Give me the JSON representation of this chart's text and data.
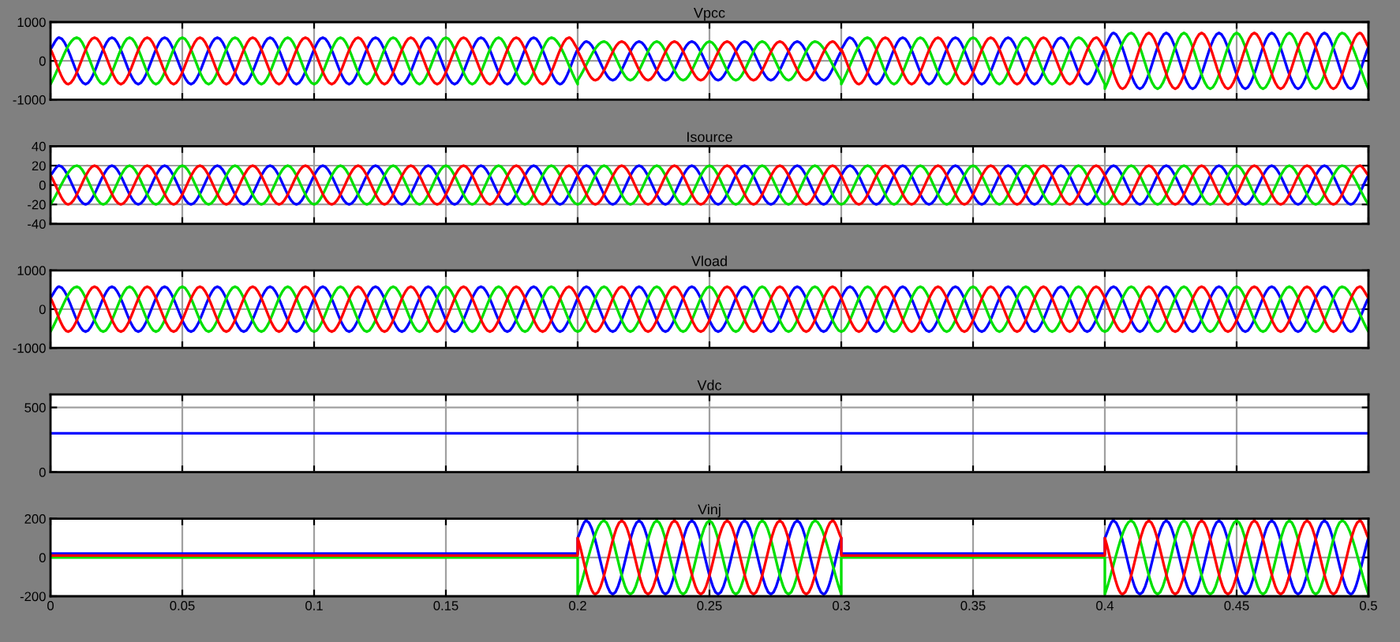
{
  "chart_data": [
    {
      "type": "line",
      "title": "Vpcc",
      "xlim": [
        0,
        0.5
      ],
      "xticks": [
        0,
        0.05,
        0.1,
        0.15,
        0.2,
        0.25,
        0.3,
        0.35,
        0.4,
        0.45,
        0.5
      ],
      "ylim": [
        -1000,
        1000
      ],
      "yticks": [
        -1000,
        0,
        1000
      ],
      "grid": true,
      "tick_labels": "y",
      "series": [
        {
          "color": "#0000ff",
          "x": [
            0,
            0.0033,
            0.0133,
            0.0233,
            0.0333,
            0.0433,
            0.0533,
            0.0633,
            0.0733,
            0.0833,
            0.0933,
            0.1033,
            0.1133,
            0.1233,
            0.1333,
            0.1433,
            0.1533,
            0.1633,
            0.1733,
            0.1833,
            0.1933,
            0.2,
            0.2,
            0.2033,
            0.2133,
            0.2233,
            0.2333,
            0.2433,
            0.2533,
            0.2633,
            0.2733,
            0.2833,
            0.2933,
            0.3,
            0.3,
            0.3033,
            0.3133,
            0.3233,
            0.3333,
            0.3433,
            0.3533,
            0.3633,
            0.3733,
            0.3833,
            0.3933,
            0.4,
            0.4,
            0.4033,
            0.4133,
            0.4233,
            0.4333,
            0.4433,
            0.4533,
            0.4633,
            0.4733,
            0.4833,
            0.4933,
            0.5
          ],
          "values": [
            300,
            600,
            -600,
            600,
            -600,
            600,
            -600,
            600,
            -600,
            600,
            -600,
            600,
            -600,
            600,
            -600,
            600,
            -600,
            600,
            -600,
            600,
            -600,
            300,
            250,
            500,
            -500,
            500,
            -500,
            500,
            -500,
            500,
            -500,
            500,
            -500,
            250,
            300,
            600,
            -600,
            600,
            -600,
            600,
            -600,
            600,
            -600,
            600,
            -600,
            300,
            360,
            720,
            -720,
            720,
            -720,
            720,
            -720,
            720,
            -720,
            720,
            -720,
            360
          ]
        },
        {
          "color": "#00e000",
          "x": [
            0,
            0.01,
            0.02,
            0.03,
            0.04,
            0.05,
            0.06,
            0.07,
            0.08,
            0.09,
            0.1,
            0.11,
            0.12,
            0.13,
            0.14,
            0.15,
            0.16,
            0.17,
            0.18,
            0.19,
            0.2,
            0.2,
            0.21,
            0.22,
            0.23,
            0.24,
            0.25,
            0.26,
            0.27,
            0.28,
            0.29,
            0.3,
            0.3,
            0.31,
            0.32,
            0.33,
            0.34,
            0.35,
            0.36,
            0.37,
            0.38,
            0.39,
            0.4,
            0.4,
            0.41,
            0.42,
            0.43,
            0.44,
            0.45,
            0.46,
            0.47,
            0.48,
            0.49,
            0.5
          ],
          "values": [
            -600,
            600,
            -600,
            600,
            -600,
            600,
            -600,
            600,
            -600,
            600,
            -600,
            600,
            -600,
            600,
            -600,
            600,
            -600,
            600,
            -600,
            600,
            -600,
            -500,
            500,
            -500,
            500,
            -500,
            500,
            -500,
            500,
            -500,
            500,
            -500,
            -600,
            600,
            -600,
            600,
            -600,
            600,
            -600,
            600,
            -600,
            600,
            -600,
            -720,
            720,
            -720,
            720,
            -720,
            720,
            -720,
            720,
            -720,
            720,
            -720
          ]
        },
        {
          "color": "#ff0000",
          "x": [
            0,
            0.0067,
            0.0167,
            0.0267,
            0.0367,
            0.0467,
            0.0567,
            0.0667,
            0.0767,
            0.0867,
            0.0967,
            0.1067,
            0.1167,
            0.1267,
            0.1367,
            0.1467,
            0.1567,
            0.1667,
            0.1767,
            0.1867,
            0.1967,
            0.2,
            0.2,
            0.2067,
            0.2167,
            0.2267,
            0.2367,
            0.2467,
            0.2567,
            0.2667,
            0.2767,
            0.2867,
            0.2967,
            0.3,
            0.3,
            0.3067,
            0.3167,
            0.3267,
            0.3367,
            0.3467,
            0.3567,
            0.3667,
            0.3767,
            0.3867,
            0.3967,
            0.4,
            0.4,
            0.4067,
            0.4167,
            0.4267,
            0.4367,
            0.4467,
            0.4567,
            0.4667,
            0.4767,
            0.4867,
            0.4967,
            0.5
          ],
          "values": [
            300,
            -600,
            600,
            -600,
            600,
            -600,
            600,
            -600,
            600,
            -600,
            600,
            -600,
            600,
            -600,
            600,
            -600,
            600,
            -600,
            600,
            -600,
            600,
            300,
            250,
            -500,
            500,
            -500,
            500,
            -500,
            500,
            -500,
            500,
            -500,
            500,
            250,
            300,
            -600,
            600,
            -600,
            600,
            -600,
            600,
            -600,
            600,
            -600,
            600,
            300,
            360,
            -720,
            720,
            -720,
            720,
            -720,
            720,
            -720,
            720,
            -720,
            720,
            360
          ]
        }
      ]
    },
    {
      "type": "line",
      "title": "Isource",
      "xlim": [
        0,
        0.5
      ],
      "xticks": [
        0,
        0.05,
        0.1,
        0.15,
        0.2,
        0.25,
        0.3,
        0.35,
        0.4,
        0.45,
        0.5
      ],
      "ylim": [
        -40,
        40
      ],
      "yticks": [
        -40,
        -20,
        0,
        20,
        40
      ],
      "grid": true,
      "tick_labels": "y",
      "series": [
        {
          "color": "#0000ff",
          "x": [
            0,
            0.0033,
            0.0133,
            0.0233,
            0.0333,
            0.0433,
            0.0533,
            0.0633,
            0.0733,
            0.0833,
            0.0933,
            0.1033,
            0.1133,
            0.1233,
            0.1333,
            0.1433,
            0.1533,
            0.1633,
            0.1733,
            0.1833,
            0.1933,
            0.2033,
            0.2133,
            0.2233,
            0.2333,
            0.2433,
            0.2533,
            0.2633,
            0.2733,
            0.2833,
            0.2933,
            0.3033,
            0.3133,
            0.3233,
            0.3333,
            0.3433,
            0.3533,
            0.3633,
            0.3733,
            0.3833,
            0.3933,
            0.4033,
            0.4133,
            0.4233,
            0.4333,
            0.4433,
            0.4533,
            0.4633,
            0.4733,
            0.4833,
            0.4933,
            0.5
          ],
          "values": [
            10,
            20,
            -20,
            20,
            -20,
            20,
            -20,
            20,
            -20,
            20,
            -20,
            20,
            -20,
            20,
            -20,
            20,
            -20,
            20,
            -20,
            20,
            -20,
            20,
            -20,
            20,
            -20,
            20,
            -20,
            20,
            -20,
            20,
            -20,
            20,
            -20,
            20,
            -20,
            20,
            -20,
            20,
            -20,
            20,
            -20,
            20,
            -20,
            20,
            -20,
            20,
            -20,
            20,
            -20,
            20,
            -20,
            10
          ]
        },
        {
          "color": "#00e000",
          "x": [
            0,
            0.01,
            0.02,
            0.03,
            0.04,
            0.05,
            0.06,
            0.07,
            0.08,
            0.09,
            0.1,
            0.11,
            0.12,
            0.13,
            0.14,
            0.15,
            0.16,
            0.17,
            0.18,
            0.19,
            0.2,
            0.21,
            0.22,
            0.23,
            0.24,
            0.25,
            0.26,
            0.27,
            0.28,
            0.29,
            0.3,
            0.31,
            0.32,
            0.33,
            0.34,
            0.35,
            0.36,
            0.37,
            0.38,
            0.39,
            0.4,
            0.41,
            0.42,
            0.43,
            0.44,
            0.45,
            0.46,
            0.47,
            0.48,
            0.49,
            0.5
          ],
          "values": [
            -20,
            20,
            -20,
            20,
            -20,
            20,
            -20,
            20,
            -20,
            20,
            -20,
            20,
            -20,
            20,
            -20,
            20,
            -20,
            20,
            -20,
            20,
            -20,
            20,
            -20,
            20,
            -20,
            20,
            -20,
            20,
            -20,
            20,
            -20,
            20,
            -20,
            20,
            -20,
            20,
            -20,
            20,
            -20,
            20,
            -20,
            20,
            -20,
            20,
            -20,
            20,
            -20,
            20,
            -20,
            20,
            -20
          ]
        },
        {
          "color": "#ff0000",
          "x": [
            0,
            0.0067,
            0.0167,
            0.0267,
            0.0367,
            0.0467,
            0.0567,
            0.0667,
            0.0767,
            0.0867,
            0.0967,
            0.1067,
            0.1167,
            0.1267,
            0.1367,
            0.1467,
            0.1567,
            0.1667,
            0.1767,
            0.1867,
            0.1967,
            0.2067,
            0.2167,
            0.2267,
            0.2367,
            0.2467,
            0.2567,
            0.2667,
            0.2767,
            0.2867,
            0.2967,
            0.3067,
            0.3167,
            0.3267,
            0.3367,
            0.3467,
            0.3567,
            0.3667,
            0.3767,
            0.3867,
            0.3967,
            0.4067,
            0.4167,
            0.4267,
            0.4367,
            0.4467,
            0.4567,
            0.4667,
            0.4767,
            0.4867,
            0.4967,
            0.5
          ],
          "values": [
            10,
            -20,
            20,
            -20,
            20,
            -20,
            20,
            -20,
            20,
            -20,
            20,
            -20,
            20,
            -20,
            20,
            -20,
            20,
            -20,
            20,
            -20,
            20,
            -20,
            20,
            -20,
            20,
            -20,
            20,
            -20,
            20,
            -20,
            20,
            -20,
            20,
            -20,
            20,
            -20,
            20,
            -20,
            20,
            -20,
            20,
            -20,
            20,
            -20,
            20,
            -20,
            20,
            -20,
            20,
            -20,
            20,
            10
          ]
        }
      ]
    },
    {
      "type": "line",
      "title": "Vload",
      "xlim": [
        0,
        0.5
      ],
      "xticks": [
        0,
        0.05,
        0.1,
        0.15,
        0.2,
        0.25,
        0.3,
        0.35,
        0.4,
        0.45,
        0.5
      ],
      "ylim": [
        -1000,
        1000
      ],
      "yticks": [
        -1000,
        0,
        1000
      ],
      "grid": true,
      "tick_labels": "y",
      "series": [
        {
          "color": "#0000ff",
          "x": [
            0,
            0.0033,
            0.0133,
            0.0233,
            0.0333,
            0.0433,
            0.0533,
            0.0633,
            0.0733,
            0.0833,
            0.0933,
            0.1033,
            0.1133,
            0.1233,
            0.1333,
            0.1433,
            0.1533,
            0.1633,
            0.1733,
            0.1833,
            0.1933,
            0.2033,
            0.2133,
            0.2233,
            0.2333,
            0.2433,
            0.2533,
            0.2633,
            0.2733,
            0.2833,
            0.2933,
            0.3033,
            0.3133,
            0.3233,
            0.3333,
            0.3433,
            0.3533,
            0.3633,
            0.3733,
            0.3833,
            0.3933,
            0.4033,
            0.4133,
            0.4233,
            0.4333,
            0.4433,
            0.4533,
            0.4633,
            0.4733,
            0.4833,
            0.4933,
            0.5
          ],
          "values": [
            290,
            580,
            -580,
            580,
            -580,
            580,
            -580,
            580,
            -580,
            580,
            -580,
            580,
            -580,
            580,
            -580,
            580,
            -580,
            580,
            -580,
            580,
            -580,
            580,
            -580,
            580,
            -580,
            580,
            -580,
            580,
            -580,
            580,
            -580,
            580,
            -580,
            580,
            -580,
            580,
            -580,
            580,
            -580,
            580,
            -580,
            580,
            -580,
            580,
            -580,
            580,
            -580,
            580,
            -580,
            580,
            -580,
            290
          ]
        },
        {
          "color": "#00e000",
          "x": [
            0,
            0.01,
            0.02,
            0.03,
            0.04,
            0.05,
            0.06,
            0.07,
            0.08,
            0.09,
            0.1,
            0.11,
            0.12,
            0.13,
            0.14,
            0.15,
            0.16,
            0.17,
            0.18,
            0.19,
            0.2,
            0.21,
            0.22,
            0.23,
            0.24,
            0.25,
            0.26,
            0.27,
            0.28,
            0.29,
            0.3,
            0.31,
            0.32,
            0.33,
            0.34,
            0.35,
            0.36,
            0.37,
            0.38,
            0.39,
            0.4,
            0.41,
            0.42,
            0.43,
            0.44,
            0.45,
            0.46,
            0.47,
            0.48,
            0.49,
            0.5
          ],
          "values": [
            -580,
            580,
            -580,
            580,
            -580,
            580,
            -580,
            580,
            -580,
            580,
            -580,
            580,
            -580,
            580,
            -580,
            580,
            -580,
            580,
            -580,
            580,
            -580,
            580,
            -580,
            580,
            -580,
            580,
            -580,
            580,
            -580,
            580,
            -580,
            580,
            -580,
            580,
            -580,
            580,
            -580,
            580,
            -580,
            580,
            -580,
            580,
            -580,
            580,
            -580,
            580,
            -580,
            580,
            -580,
            580,
            -580
          ]
        },
        {
          "color": "#ff0000",
          "x": [
            0,
            0.0067,
            0.0167,
            0.0267,
            0.0367,
            0.0467,
            0.0567,
            0.0667,
            0.0767,
            0.0867,
            0.0967,
            0.1067,
            0.1167,
            0.1267,
            0.1367,
            0.1467,
            0.1567,
            0.1667,
            0.1767,
            0.1867,
            0.1967,
            0.2067,
            0.2167,
            0.2267,
            0.2367,
            0.2467,
            0.2567,
            0.2667,
            0.2767,
            0.2867,
            0.2967,
            0.3067,
            0.3167,
            0.3267,
            0.3367,
            0.3467,
            0.3567,
            0.3667,
            0.3767,
            0.3867,
            0.3967,
            0.4067,
            0.4167,
            0.4267,
            0.4367,
            0.4467,
            0.4567,
            0.4667,
            0.4767,
            0.4867,
            0.4967,
            0.5
          ],
          "values": [
            290,
            -580,
            580,
            -580,
            580,
            -580,
            580,
            -580,
            580,
            -580,
            580,
            -580,
            580,
            -580,
            580,
            -580,
            580,
            -580,
            580,
            -580,
            580,
            -580,
            580,
            -580,
            580,
            -580,
            580,
            -580,
            580,
            -580,
            580,
            -580,
            580,
            -580,
            580,
            -580,
            580,
            -580,
            580,
            -580,
            580,
            -580,
            580,
            -580,
            580,
            -580,
            580,
            -580,
            580,
            -580,
            580,
            290
          ]
        }
      ]
    },
    {
      "type": "line",
      "title": "Vdc",
      "xlim": [
        0,
        0.5
      ],
      "xticks": [
        0,
        0.05,
        0.1,
        0.15,
        0.2,
        0.25,
        0.3,
        0.35,
        0.4,
        0.45,
        0.5
      ],
      "ylim": [
        0,
        600
      ],
      "yticks": [
        0,
        500
      ],
      "grid": true,
      "tick_labels": "y",
      "series": [
        {
          "color": "#0000ff",
          "x": [
            0,
            0.5
          ],
          "values": [
            300,
            300
          ]
        }
      ]
    },
    {
      "type": "line",
      "title": "Vinj",
      "xlim": [
        0,
        0.5
      ],
      "xticks": [
        0,
        0.05,
        0.1,
        0.15,
        0.2,
        0.25,
        0.3,
        0.35,
        0.4,
        0.45,
        0.5
      ],
      "ylim": [
        -200,
        200
      ],
      "yticks": [
        -200,
        0,
        200
      ],
      "grid": true,
      "series": [
        {
          "color": "#0000ff",
          "x": [
            0,
            0.2,
            0.2,
            0.2033,
            0.2133,
            0.2233,
            0.2333,
            0.2433,
            0.2533,
            0.2633,
            0.2733,
            0.2833,
            0.2933,
            0.3,
            0.3,
            0.4,
            0.4,
            0.4033,
            0.4133,
            0.4233,
            0.4333,
            0.4433,
            0.4533,
            0.4633,
            0.4733,
            0.4833,
            0.4933,
            0.5
          ],
          "values": [
            20,
            20,
            100,
            190,
            -190,
            190,
            -190,
            190,
            -190,
            190,
            -190,
            190,
            -190,
            100,
            20,
            20,
            100,
            190,
            -190,
            190,
            -190,
            190,
            -190,
            190,
            -190,
            190,
            -190,
            100
          ]
        },
        {
          "color": "#00e000",
          "x": [
            0,
            0.2,
            0.2,
            0.21,
            0.22,
            0.23,
            0.24,
            0.25,
            0.26,
            0.27,
            0.28,
            0.29,
            0.3,
            0.3,
            0.4,
            0.4,
            0.41,
            0.42,
            0.43,
            0.44,
            0.45,
            0.46,
            0.47,
            0.48,
            0.49,
            0.5
          ],
          "values": [
            0,
            0,
            -190,
            190,
            -190,
            190,
            -190,
            190,
            -190,
            190,
            -190,
            190,
            -190,
            0,
            0,
            -190,
            190,
            -190,
            190,
            -190,
            190,
            -190,
            190,
            -190,
            190,
            -190
          ]
        },
        {
          "color": "#ff0000",
          "x": [
            0,
            0.2,
            0.2,
            0.2067,
            0.2167,
            0.2267,
            0.2367,
            0.2467,
            0.2567,
            0.2667,
            0.2767,
            0.2867,
            0.2967,
            0.3,
            0.3,
            0.4,
            0.4,
            0.4067,
            0.4167,
            0.4267,
            0.4367,
            0.4467,
            0.4567,
            0.4667,
            0.4767,
            0.4867,
            0.4967,
            0.5
          ],
          "values": [
            10,
            10,
            100,
            -190,
            190,
            -190,
            190,
            -190,
            190,
            -190,
            190,
            -190,
            190,
            100,
            10,
            10,
            100,
            -190,
            190,
            -190,
            190,
            -190,
            190,
            -190,
            190,
            -190,
            190,
            100
          ]
        }
      ]
    }
  ]
}
